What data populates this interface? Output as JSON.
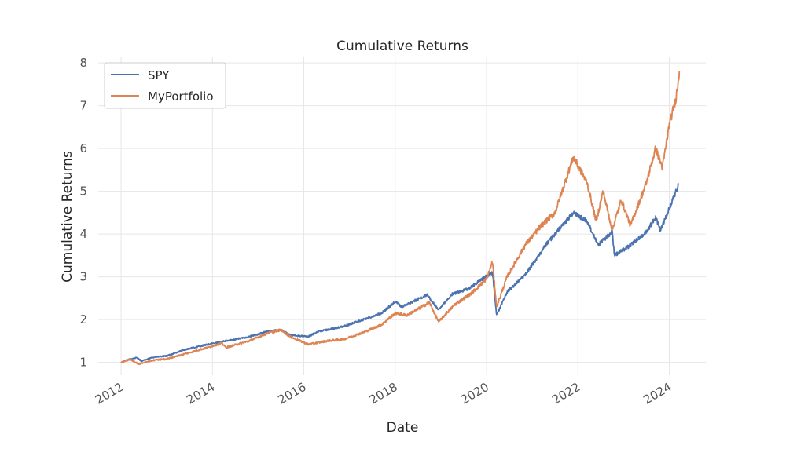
{
  "chart_data": {
    "type": "line",
    "title": "Cumulative Returns",
    "xlabel": "Date",
    "ylabel": "Cumulative Returns",
    "x_range": [
      2011.5,
      2024.8
    ],
    "ylim": [
      0.7,
      8.15
    ],
    "x_ticks": [
      2012,
      2014,
      2016,
      2018,
      2020,
      2022,
      2024
    ],
    "y_ticks": [
      1,
      2,
      3,
      4,
      5,
      6,
      7,
      8
    ],
    "grid": true,
    "legend_position": "top-left",
    "series": [
      {
        "name": "SPY",
        "color": "#4c72b0",
        "points": [
          [
            2012.0,
            1.0
          ],
          [
            2012.2,
            1.08
          ],
          [
            2012.35,
            1.11
          ],
          [
            2012.45,
            1.03
          ],
          [
            2012.7,
            1.12
          ],
          [
            2013.0,
            1.15
          ],
          [
            2013.4,
            1.3
          ],
          [
            2013.9,
            1.42
          ],
          [
            2014.3,
            1.5
          ],
          [
            2014.8,
            1.6
          ],
          [
            2015.2,
            1.72
          ],
          [
            2015.5,
            1.76
          ],
          [
            2015.7,
            1.64
          ],
          [
            2016.1,
            1.6
          ],
          [
            2016.3,
            1.72
          ],
          [
            2016.7,
            1.8
          ],
          [
            2016.9,
            1.85
          ],
          [
            2017.3,
            2.0
          ],
          [
            2017.7,
            2.15
          ],
          [
            2018.0,
            2.42
          ],
          [
            2018.15,
            2.3
          ],
          [
            2018.7,
            2.58
          ],
          [
            2018.95,
            2.22
          ],
          [
            2019.25,
            2.6
          ],
          [
            2019.6,
            2.72
          ],
          [
            2019.95,
            2.98
          ],
          [
            2020.13,
            3.1
          ],
          [
            2020.22,
            2.1
          ],
          [
            2020.45,
            2.65
          ],
          [
            2020.85,
            3.05
          ],
          [
            2021.3,
            3.75
          ],
          [
            2021.9,
            4.5
          ],
          [
            2022.2,
            4.3
          ],
          [
            2022.45,
            3.75
          ],
          [
            2022.75,
            4.05
          ],
          [
            2022.8,
            3.5
          ],
          [
            2023.1,
            3.7
          ],
          [
            2023.5,
            4.05
          ],
          [
            2023.7,
            4.4
          ],
          [
            2023.8,
            4.08
          ],
          [
            2024.0,
            4.6
          ],
          [
            2024.2,
            5.15
          ]
        ]
      },
      {
        "name": "MyPortfolio",
        "color": "#dd8452",
        "points": [
          [
            2012.0,
            1.0
          ],
          [
            2012.2,
            1.07
          ],
          [
            2012.38,
            0.96
          ],
          [
            2012.7,
            1.05
          ],
          [
            2013.0,
            1.08
          ],
          [
            2013.4,
            1.2
          ],
          [
            2013.9,
            1.35
          ],
          [
            2014.2,
            1.45
          ],
          [
            2014.3,
            1.35
          ],
          [
            2014.8,
            1.5
          ],
          [
            2015.2,
            1.68
          ],
          [
            2015.5,
            1.76
          ],
          [
            2015.7,
            1.6
          ],
          [
            2016.1,
            1.42
          ],
          [
            2016.5,
            1.5
          ],
          [
            2016.9,
            1.55
          ],
          [
            2017.3,
            1.7
          ],
          [
            2017.7,
            1.88
          ],
          [
            2018.0,
            2.15
          ],
          [
            2018.25,
            2.1
          ],
          [
            2018.75,
            2.4
          ],
          [
            2018.95,
            1.95
          ],
          [
            2019.3,
            2.35
          ],
          [
            2019.65,
            2.6
          ],
          [
            2020.0,
            2.95
          ],
          [
            2020.13,
            3.35
          ],
          [
            2020.22,
            2.3
          ],
          [
            2020.45,
            3.0
          ],
          [
            2020.85,
            3.75
          ],
          [
            2021.2,
            4.2
          ],
          [
            2021.5,
            4.5
          ],
          [
            2021.9,
            5.8
          ],
          [
            2022.2,
            5.2
          ],
          [
            2022.4,
            4.3
          ],
          [
            2022.55,
            5.0
          ],
          [
            2022.75,
            4.1
          ],
          [
            2022.95,
            4.8
          ],
          [
            2023.15,
            4.2
          ],
          [
            2023.5,
            5.2
          ],
          [
            2023.7,
            6.0
          ],
          [
            2023.85,
            5.55
          ],
          [
            2024.0,
            6.55
          ],
          [
            2024.15,
            7.2
          ],
          [
            2024.22,
            7.8
          ]
        ]
      }
    ]
  }
}
